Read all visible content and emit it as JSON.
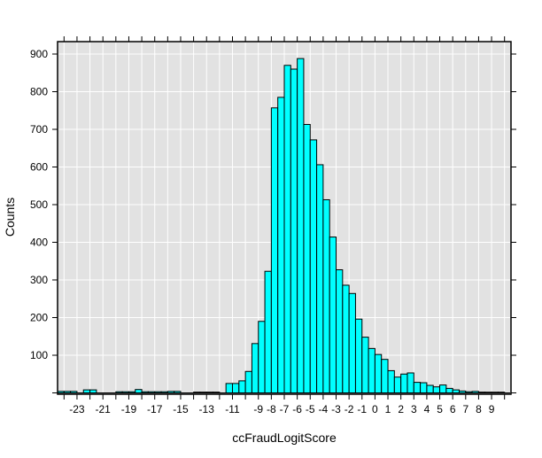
{
  "chart_data": {
    "type": "bar",
    "variant": "histogram",
    "title": "",
    "xlabel": "ccFraudLogitScore",
    "ylabel": "Counts",
    "bin_width": 0.5,
    "bins_left_edge_start": -24.5,
    "counts": [
      4,
      4,
      4,
      0,
      8,
      8,
      0,
      0,
      0,
      3,
      3,
      3,
      9,
      3,
      3,
      3,
      3,
      4,
      4,
      0,
      0,
      2,
      2,
      2,
      2,
      0,
      25,
      25,
      32,
      57,
      131,
      190,
      323,
      757,
      785,
      870,
      860,
      888,
      713,
      672,
      606,
      513,
      414,
      327,
      286,
      264,
      196,
      148,
      118,
      102,
      89,
      59,
      42,
      50,
      53,
      28,
      27,
      20,
      16,
      21,
      12,
      8,
      5,
      3,
      4,
      2,
      1,
      1,
      1
    ],
    "xlim": [
      -24.5,
      10.5
    ],
    "ylim": [
      0,
      933
    ],
    "x_tick_values": [
      -24,
      -23,
      -22,
      -21,
      -20,
      -19,
      -18,
      -17,
      -16,
      -15,
      -14,
      -13,
      -12,
      -11,
      -10,
      -9,
      -8,
      -7,
      -6,
      -5,
      -4,
      -3,
      -2,
      -1,
      0,
      1,
      2,
      3,
      4,
      5,
      6,
      7,
      8,
      9,
      10
    ],
    "x_labeled_ticks": [
      -23,
      -21,
      -19,
      -17,
      -15,
      -13,
      -11,
      -9,
      -8,
      -7,
      -6,
      -5,
      -4,
      -3,
      -2,
      -1,
      0,
      1,
      2,
      3,
      4,
      5,
      6,
      7,
      8,
      9
    ],
    "y_tick_values": [
      0,
      100,
      200,
      300,
      400,
      500,
      600,
      700,
      800,
      900
    ],
    "y_labeled_ticks": [
      100,
      200,
      300,
      400,
      500,
      600,
      700,
      800,
      900
    ],
    "grid": true,
    "legend": false,
    "colors": {
      "bar_fill": "#00ffff",
      "bar_stroke": "#000000",
      "plot_bg": "#e2e2e2",
      "grid_line": "#ffffff",
      "axis": "#000000",
      "page_bg": "#ffffff"
    }
  }
}
